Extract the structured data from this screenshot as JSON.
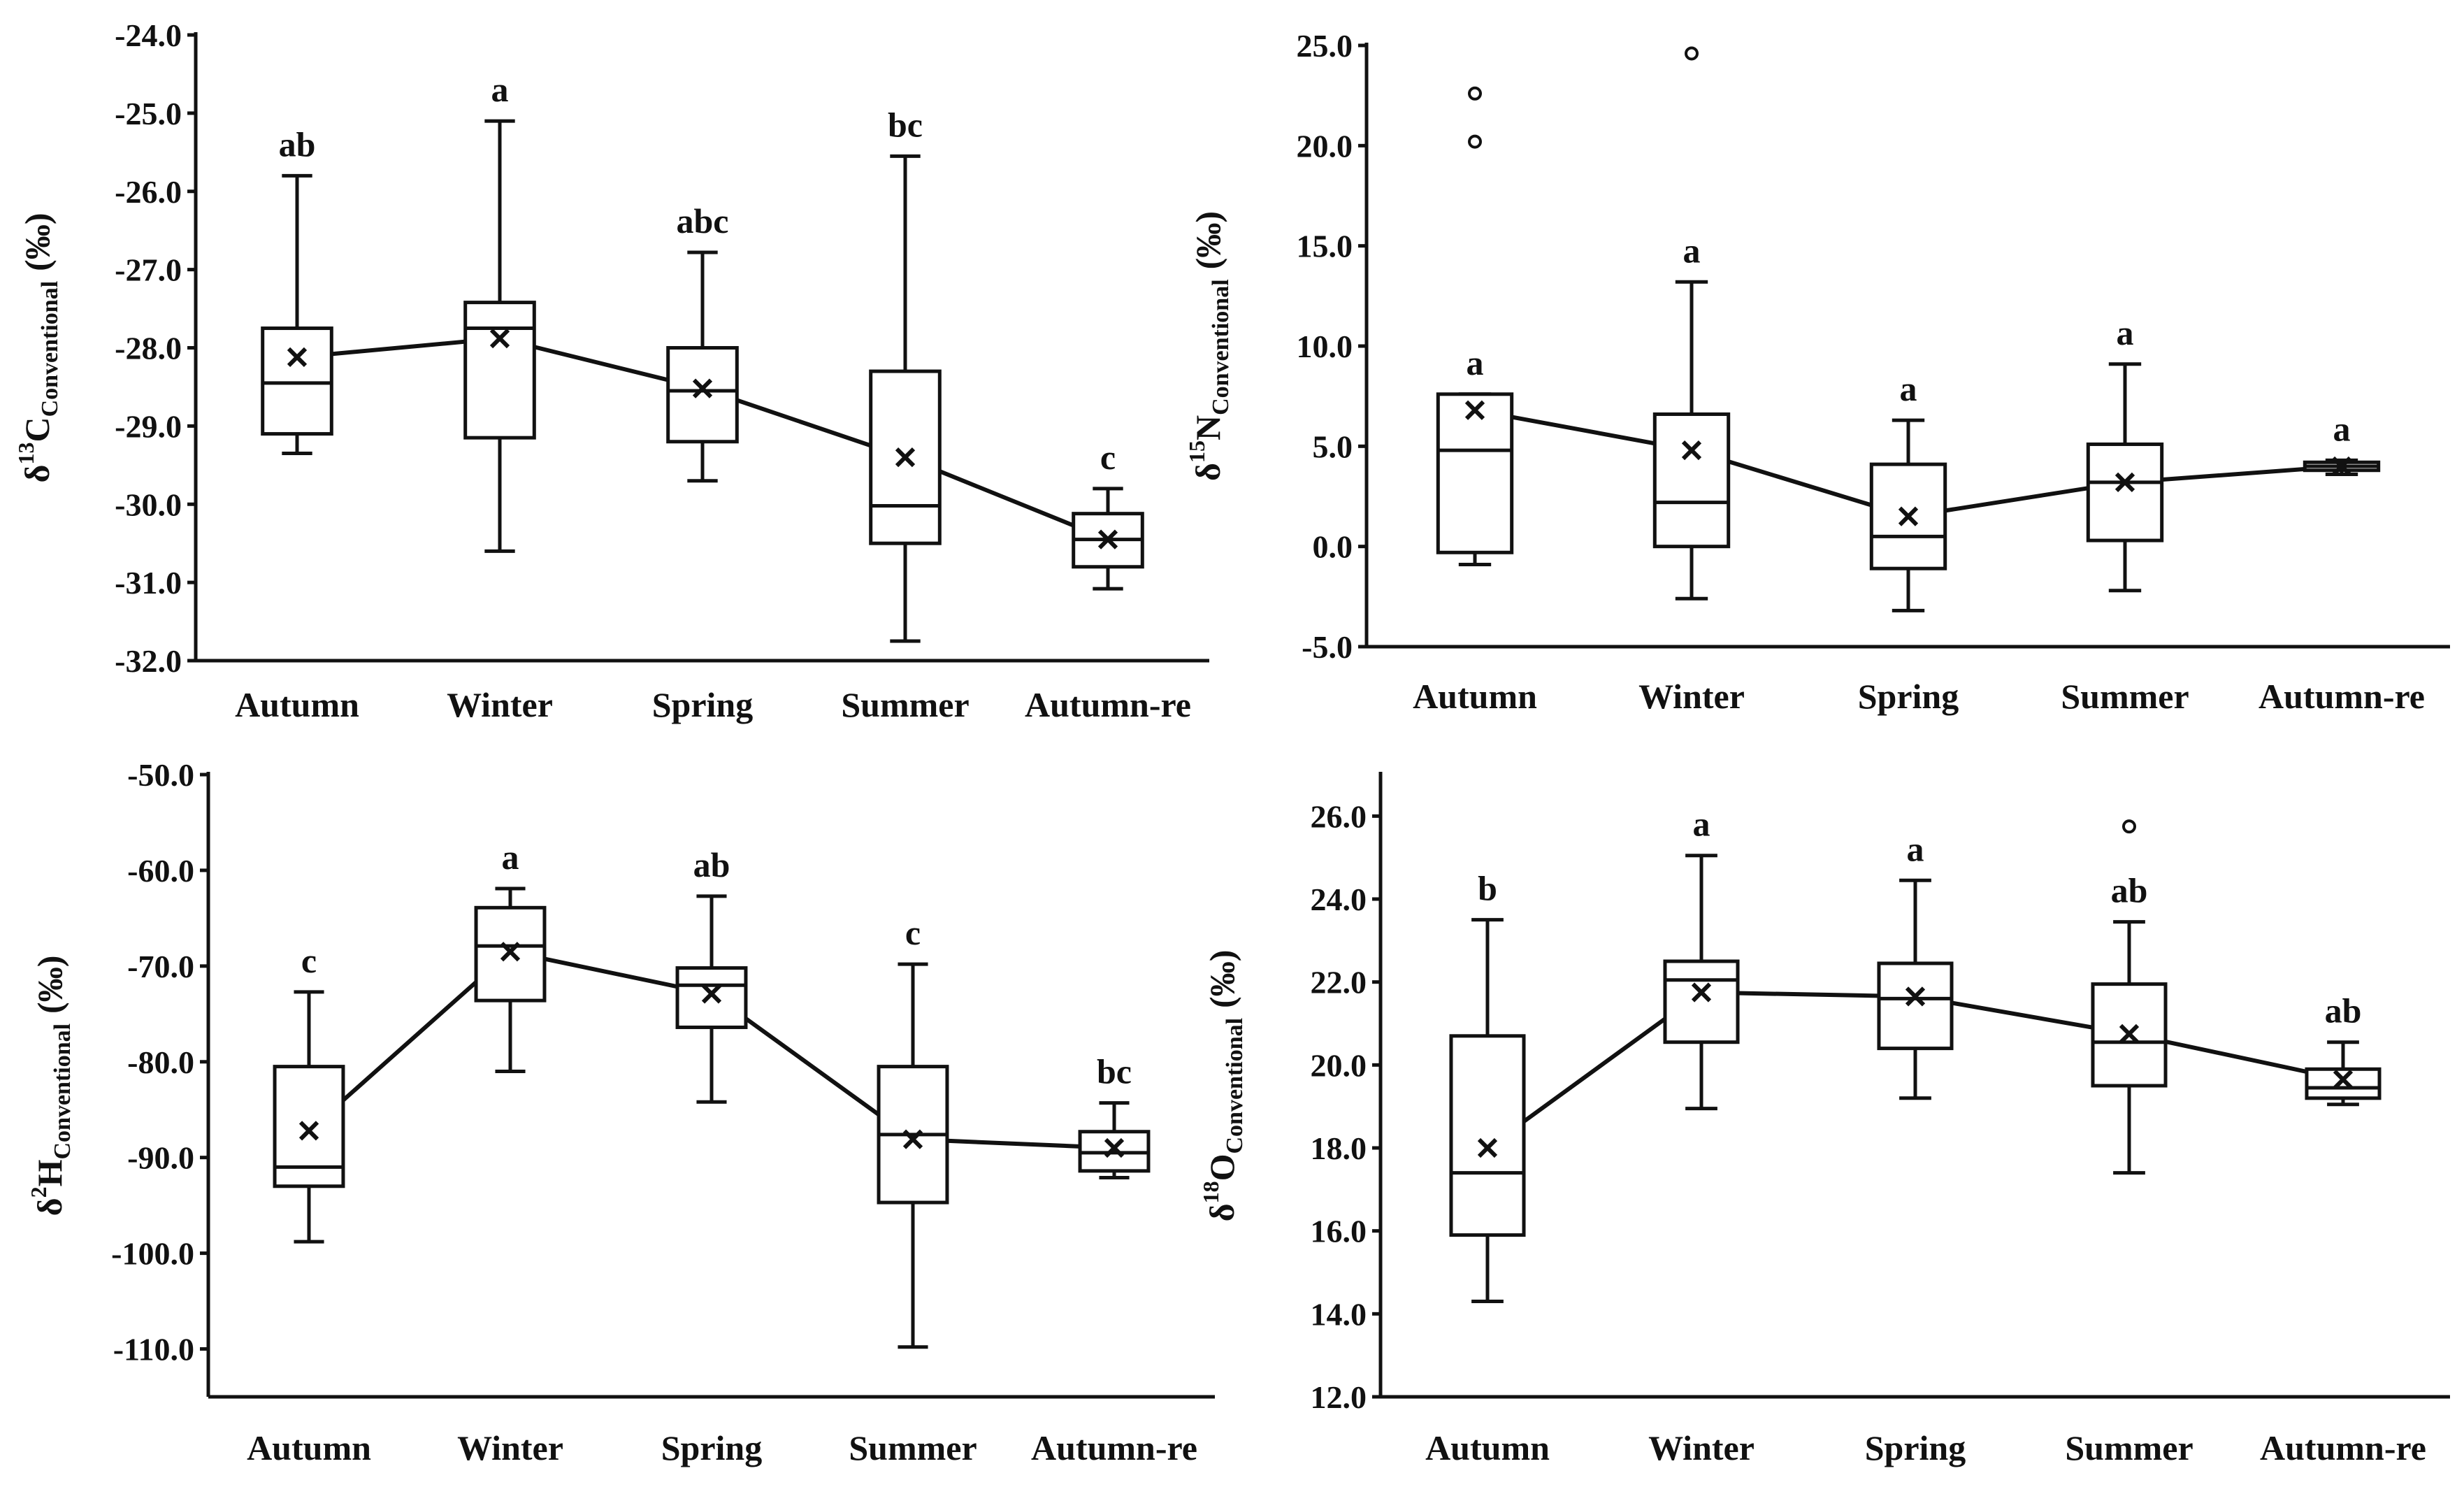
{
  "colors": {
    "ink": "#111111",
    "background": "#ffffff"
  },
  "chart_data": [
    {
      "type": "box",
      "ylabel": {
        "prefix": "δ",
        "sup": "13",
        "main": "C",
        "sub": "Conventional",
        "unit": "(‰)"
      },
      "categories": [
        "Autumn",
        "Winter",
        "Spring",
        "Summer",
        "Autumn-re"
      ],
      "ylim": [
        -32.0,
        -24.0
      ],
      "yticks": [
        -24.0,
        -25.0,
        -26.0,
        -27.0,
        -28.0,
        -29.0,
        -30.0,
        -31.0,
        -32.0
      ],
      "tick_labels": [
        "-24.0",
        "-25.0",
        "-26.0",
        "-27.0",
        "-28.0",
        "-29.0",
        "-30.0",
        "-31.0",
        "-32.0"
      ],
      "boxes": [
        {
          "whisker_low": -29.35,
          "q1": -29.1,
          "median": -28.45,
          "q3": -27.75,
          "whisker_high": -25.8,
          "mean": -28.12,
          "outliers": []
        },
        {
          "whisker_low": -30.6,
          "q1": -29.15,
          "median": -27.75,
          "q3": -27.42,
          "whisker_high": -25.1,
          "mean": -27.88,
          "outliers": []
        },
        {
          "whisker_low": -29.7,
          "q1": -29.2,
          "median": -28.55,
          "q3": -28.0,
          "whisker_high": -26.78,
          "mean": -28.52,
          "outliers": []
        },
        {
          "whisker_low": -31.75,
          "q1": -30.5,
          "median": -30.02,
          "q3": -28.3,
          "whisker_high": -25.55,
          "mean": -29.4,
          "outliers": []
        },
        {
          "whisker_low": -31.08,
          "q1": -30.8,
          "median": -30.45,
          "q3": -30.12,
          "whisker_high": -29.8,
          "mean": -30.45,
          "outliers": []
        }
      ],
      "significance": [
        "ab",
        "a",
        "abc",
        "bc",
        "c"
      ]
    },
    {
      "type": "box",
      "ylabel": {
        "prefix": "δ",
        "sup": "15",
        "main": "N",
        "sub": "Conventional",
        "unit": "(‰)"
      },
      "categories": [
        "Autumn",
        "Winter",
        "Spring",
        "Summer",
        "Autumn-re"
      ],
      "ylim": [
        -5.0,
        25.0
      ],
      "yticks": [
        25.0,
        20.0,
        15.0,
        10.0,
        5.0,
        0.0,
        -5.0
      ],
      "tick_labels": [
        "25.0",
        "20.0",
        "15.0",
        "10.0",
        "5.0",
        "0.0",
        "-5.0"
      ],
      "boxes": [
        {
          "whisker_low": -0.9,
          "q1": -0.3,
          "median": 4.8,
          "q3": 7.6,
          "whisker_high": 7.6,
          "mean": 6.8,
          "outliers": [
            20.2,
            22.6
          ]
        },
        {
          "whisker_low": -2.6,
          "q1": 0.0,
          "median": 2.2,
          "q3": 6.6,
          "whisker_high": 13.2,
          "mean": 4.8,
          "outliers": [
            24.6
          ]
        },
        {
          "whisker_low": -3.2,
          "q1": -1.1,
          "median": 0.5,
          "q3": 4.1,
          "whisker_high": 6.3,
          "mean": 1.5,
          "outliers": []
        },
        {
          "whisker_low": -2.2,
          "q1": 0.3,
          "median": 3.2,
          "q3": 5.1,
          "whisker_high": 9.1,
          "mean": 3.2,
          "outliers": []
        },
        {
          "whisker_low": 3.6,
          "q1": 3.8,
          "median": 4.0,
          "q3": 4.2,
          "whisker_high": 4.3,
          "mean": 4.0,
          "outliers": []
        }
      ],
      "significance": [
        "a",
        "a",
        "a",
        "a",
        "a"
      ]
    },
    {
      "type": "box",
      "ylabel": {
        "prefix": "δ",
        "sup": "2",
        "main": "H",
        "sub": "Conventional",
        "unit": "(‰)"
      },
      "categories": [
        "Autumn",
        "Winter",
        "Spring",
        "Summer",
        "Autumn-re"
      ],
      "ylim": [
        -115.0,
        -50.0
      ],
      "yticks": [
        -50.0,
        -60.0,
        -70.0,
        -80.0,
        -90.0,
        -100.0,
        -110.0
      ],
      "tick_labels": [
        "-50.0",
        "-60.0",
        "-70.0",
        "-80.0",
        "-90.0",
        "-100.0",
        "-110.0"
      ],
      "boxes": [
        {
          "whisker_low": -98.8,
          "q1": -93.0,
          "median": -91.0,
          "q3": -80.5,
          "whisker_high": -72.7,
          "mean": -87.2,
          "outliers": []
        },
        {
          "whisker_low": -81.0,
          "q1": -73.6,
          "median": -67.9,
          "q3": -63.9,
          "whisker_high": -61.9,
          "mean": -68.5,
          "outliers": []
        },
        {
          "whisker_low": -84.2,
          "q1": -76.4,
          "median": -72.0,
          "q3": -70.2,
          "whisker_high": -62.7,
          "mean": -72.9,
          "outliers": []
        },
        {
          "whisker_low": -109.8,
          "q1": -94.7,
          "median": -87.6,
          "q3": -80.5,
          "whisker_high": -69.8,
          "mean": -88.1,
          "outliers": []
        },
        {
          "whisker_low": -92.1,
          "q1": -91.4,
          "median": -89.5,
          "q3": -87.3,
          "whisker_high": -84.3,
          "mean": -89.0,
          "outliers": []
        }
      ],
      "significance": [
        "c",
        "a",
        "ab",
        "c",
        "bc"
      ]
    },
    {
      "type": "box",
      "ylabel": {
        "prefix": "δ",
        "sup": "18",
        "main": "O",
        "sub": "Conventional",
        "unit": "(‰)"
      },
      "categories": [
        "Autumn",
        "Winter",
        "Spring",
        "Summer",
        "Autumn-re"
      ],
      "ylim": [
        12.0,
        27.0
      ],
      "yticks": [
        26.0,
        24.0,
        22.0,
        20.0,
        18.0,
        16.0,
        14.0,
        12.0
      ],
      "tick_labels": [
        "26.0",
        "24.0",
        "22.0",
        "20.0",
        "18.0",
        "16.0",
        "14.0",
        "12.0"
      ],
      "boxes": [
        {
          "whisker_low": 14.3,
          "q1": 15.9,
          "median": 17.4,
          "q3": 20.7,
          "whisker_high": 23.5,
          "mean": 18.0,
          "outliers": []
        },
        {
          "whisker_low": 18.95,
          "q1": 20.55,
          "median": 22.05,
          "q3": 22.5,
          "whisker_high": 25.05,
          "mean": 21.75,
          "outliers": []
        },
        {
          "whisker_low": 19.2,
          "q1": 20.4,
          "median": 21.6,
          "q3": 22.45,
          "whisker_high": 24.45,
          "mean": 21.65,
          "outliers": []
        },
        {
          "whisker_low": 17.4,
          "q1": 19.5,
          "median": 20.55,
          "q3": 21.95,
          "whisker_high": 23.45,
          "mean": 20.75,
          "outliers": [
            25.75
          ]
        },
        {
          "whisker_low": 19.05,
          "q1": 19.2,
          "median": 19.45,
          "q3": 19.9,
          "whisker_high": 20.55,
          "mean": 19.65,
          "outliers": []
        }
      ],
      "significance": [
        "b",
        "a",
        "a",
        "ab",
        "ab"
      ]
    }
  ]
}
